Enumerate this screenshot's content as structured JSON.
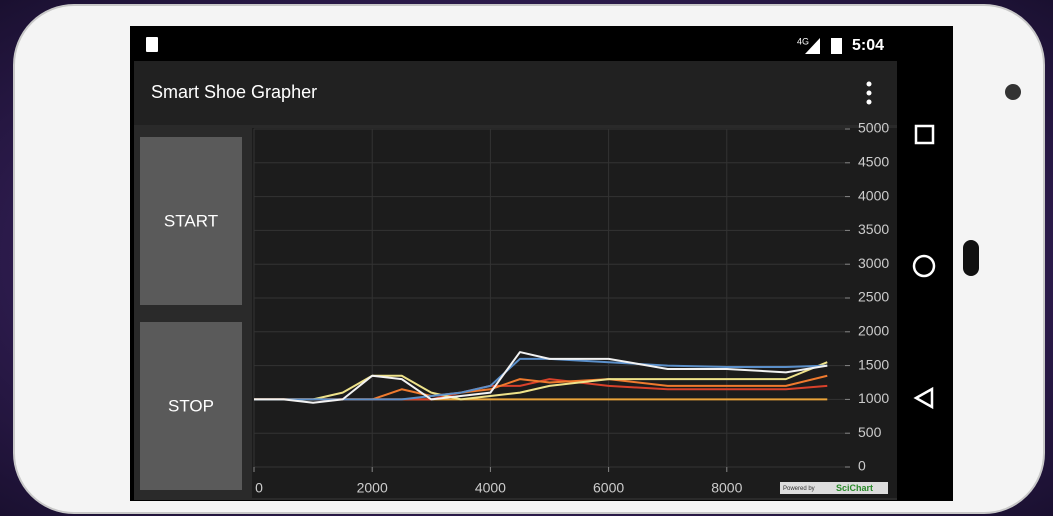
{
  "status_bar": {
    "network": "4G",
    "time": "5:04"
  },
  "app_bar": {
    "title": "Smart Shoe Grapher"
  },
  "buttons": [
    "START",
    "STOP"
  ],
  "chart": {
    "type": "line",
    "x": [
      0,
      500,
      1000,
      1500,
      2000,
      2500,
      3000,
      3500,
      4000,
      4500,
      5000,
      6000,
      7000,
      8000,
      9000,
      9700
    ],
    "series": [
      {
        "color": "#e8a33a",
        "values": [
          1000,
          1000,
          1000,
          1000,
          1000,
          1000,
          1000,
          1000,
          1000,
          1000,
          1000,
          1000,
          1000,
          1000,
          1000,
          1000
        ]
      },
      {
        "color": "#d9412b",
        "values": [
          1000,
          1000,
          1000,
          1000,
          1000,
          1000,
          1000,
          1100,
          1200,
          1200,
          1300,
          1200,
          1150,
          1150,
          1150,
          1200
        ]
      },
      {
        "color": "#ef7a2e",
        "values": [
          1000,
          1000,
          1000,
          1000,
          1000,
          1150,
          1050,
          1100,
          1150,
          1300,
          1250,
          1300,
          1200,
          1200,
          1200,
          1350
        ]
      },
      {
        "color": "#eee28a",
        "values": [
          1000,
          1000,
          1000,
          1100,
          1350,
          1350,
          1100,
          1000,
          1050,
          1100,
          1200,
          1300,
          1300,
          1300,
          1300,
          1550
        ]
      },
      {
        "color": "#5b8fc9",
        "values": [
          1000,
          1000,
          1000,
          1000,
          1000,
          1000,
          1050,
          1100,
          1200,
          1600,
          1600,
          1550,
          1500,
          1480,
          1480,
          1500
        ]
      },
      {
        "color": "#f2f2f2",
        "values": [
          1000,
          1000,
          950,
          1000,
          1350,
          1300,
          1000,
          1050,
          1100,
          1700,
          1600,
          1600,
          1450,
          1450,
          1400,
          1500
        ]
      }
    ],
    "xlim": [
      0,
      10000
    ],
    "ylim": [
      0,
      5000
    ],
    "xticks": [
      0,
      2000,
      4000,
      6000,
      8000
    ],
    "yticks": [
      0,
      500,
      1000,
      1500,
      2000,
      2500,
      3000,
      3500,
      4000,
      4500,
      5000
    ],
    "grid": true
  },
  "watermark": {
    "prefix": "Powered by",
    "brand": "SciChart"
  }
}
